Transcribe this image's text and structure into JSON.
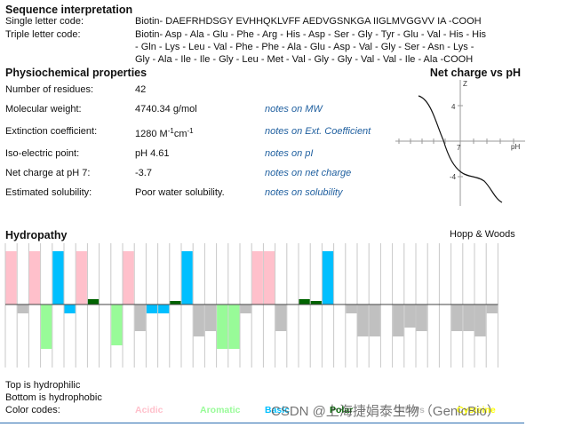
{
  "sequence": {
    "title": "Sequence interpretation",
    "single_label": "Single letter code:",
    "single_value": "Biotin- DAEFRHDSGY EVHHQKLVFF AEDVGSNKGA IIGLMVGGVV IA -COOH",
    "triple_label": "Triple letter code:",
    "triple_lines": [
      "Biotin- Asp - Ala - Glu - Phe - Arg - His - Asp - Ser - Gly - Tyr - Glu - Val - His - His",
      "- Gln - Lys - Leu - Val - Phe - Phe - Ala - Glu - Asp - Val - Gly - Ser - Asn - Lys -",
      "Gly - Ala - Ile - Ile - Gly - Leu - Met - Val - Gly - Gly - Val - Val - Ile - Ala -COOH"
    ]
  },
  "physio": {
    "title": "Physiochemical properties",
    "rows": [
      {
        "label": "Number of residues:",
        "value": "42",
        "note": ""
      },
      {
        "label": "Molecular weight:",
        "value": "4740.34 g/mol",
        "note": "notes on MW"
      },
      {
        "label": "Extinction coefficient:",
        "value_main": "1280 M",
        "value_sup1": "-1",
        "value_mid": "cm",
        "value_sup2": "-1",
        "note": "notes on Ext. Coefficient"
      },
      {
        "label": "Iso-electric point:",
        "value": "pH 4.61",
        "note": "notes on pI"
      },
      {
        "label": "Net charge at pH 7:",
        "value": "-3.7",
        "note": "notes on net charge"
      },
      {
        "label": "Estimated solubility:",
        "value": "Poor water solubility.",
        "note": "notes on solubility"
      }
    ]
  },
  "charge_chart": {
    "title": "Net charge vs pH",
    "y_axis_label": "Z",
    "x_axis_label": "pH",
    "y_tick_top": "4",
    "y_tick_bottom": "-4",
    "x_tick_mid": "7"
  },
  "hydropathy": {
    "title": "Hydropathy",
    "scale": "Hopp & Woods",
    "footer_top": "Top is hydrophilic",
    "footer_bottom": "Bottom is hydrophobic",
    "codes_label": "Color codes:",
    "codes": [
      {
        "name": "Acidic",
        "color": "#ffc0cb"
      },
      {
        "name": "Aromatic",
        "color": "#98fb98"
      },
      {
        "name": "Basic",
        "color": "#00bfff"
      },
      {
        "name": "Polar",
        "color": "#006400"
      },
      {
        "name": "Others",
        "color": "#c0c0c0"
      },
      {
        "name": "Cysteine",
        "color": "#ffff00"
      }
    ],
    "bars": [
      {
        "aa": "D",
        "type": "acidic",
        "value": 3.0
      },
      {
        "aa": "A",
        "type": "other",
        "value": -0.5
      },
      {
        "aa": "E",
        "type": "acidic",
        "value": 3.0
      },
      {
        "aa": "F",
        "type": "aromatic",
        "value": -2.5
      },
      {
        "aa": "R",
        "type": "basic",
        "value": 3.0
      },
      {
        "aa": "H",
        "type": "basic",
        "value": -0.5
      },
      {
        "aa": "D",
        "type": "acidic",
        "value": 3.0
      },
      {
        "aa": "S",
        "type": "polar",
        "value": 0.3
      },
      {
        "aa": "G",
        "type": "other",
        "value": 0.0
      },
      {
        "aa": "Y",
        "type": "aromatic",
        "value": -2.3
      },
      {
        "aa": "E",
        "type": "acidic",
        "value": 3.0
      },
      {
        "aa": "V",
        "type": "other",
        "value": -1.5
      },
      {
        "aa": "H",
        "type": "basic",
        "value": -0.5
      },
      {
        "aa": "H",
        "type": "basic",
        "value": -0.5
      },
      {
        "aa": "Q",
        "type": "polar",
        "value": 0.2
      },
      {
        "aa": "K",
        "type": "basic",
        "value": 3.0
      },
      {
        "aa": "L",
        "type": "other",
        "value": -1.8
      },
      {
        "aa": "V",
        "type": "other",
        "value": -1.5
      },
      {
        "aa": "F",
        "type": "aromatic",
        "value": -2.5
      },
      {
        "aa": "F",
        "type": "aromatic",
        "value": -2.5
      },
      {
        "aa": "A",
        "type": "other",
        "value": -0.5
      },
      {
        "aa": "E",
        "type": "acidic",
        "value": 3.0
      },
      {
        "aa": "D",
        "type": "acidic",
        "value": 3.0
      },
      {
        "aa": "V",
        "type": "other",
        "value": -1.5
      },
      {
        "aa": "G",
        "type": "other",
        "value": 0.0
      },
      {
        "aa": "S",
        "type": "polar",
        "value": 0.3
      },
      {
        "aa": "N",
        "type": "polar",
        "value": 0.2
      },
      {
        "aa": "K",
        "type": "basic",
        "value": 3.0
      },
      {
        "aa": "G",
        "type": "other",
        "value": 0.0
      },
      {
        "aa": "A",
        "type": "other",
        "value": -0.5
      },
      {
        "aa": "I",
        "type": "other",
        "value": -1.8
      },
      {
        "aa": "I",
        "type": "other",
        "value": -1.8
      },
      {
        "aa": "G",
        "type": "other",
        "value": 0.0
      },
      {
        "aa": "L",
        "type": "other",
        "value": -1.8
      },
      {
        "aa": "M",
        "type": "other",
        "value": -1.3
      },
      {
        "aa": "V",
        "type": "other",
        "value": -1.5
      },
      {
        "aa": "G",
        "type": "other",
        "value": 0.0
      },
      {
        "aa": "G",
        "type": "other",
        "value": 0.0
      },
      {
        "aa": "V",
        "type": "other",
        "value": -1.5
      },
      {
        "aa": "V",
        "type": "other",
        "value": -1.5
      },
      {
        "aa": "I",
        "type": "other",
        "value": -1.8
      },
      {
        "aa": "A",
        "type": "other",
        "value": -0.5
      }
    ]
  },
  "watermark": "CSDN @上海捷娟泰生物（GenicBio）"
}
